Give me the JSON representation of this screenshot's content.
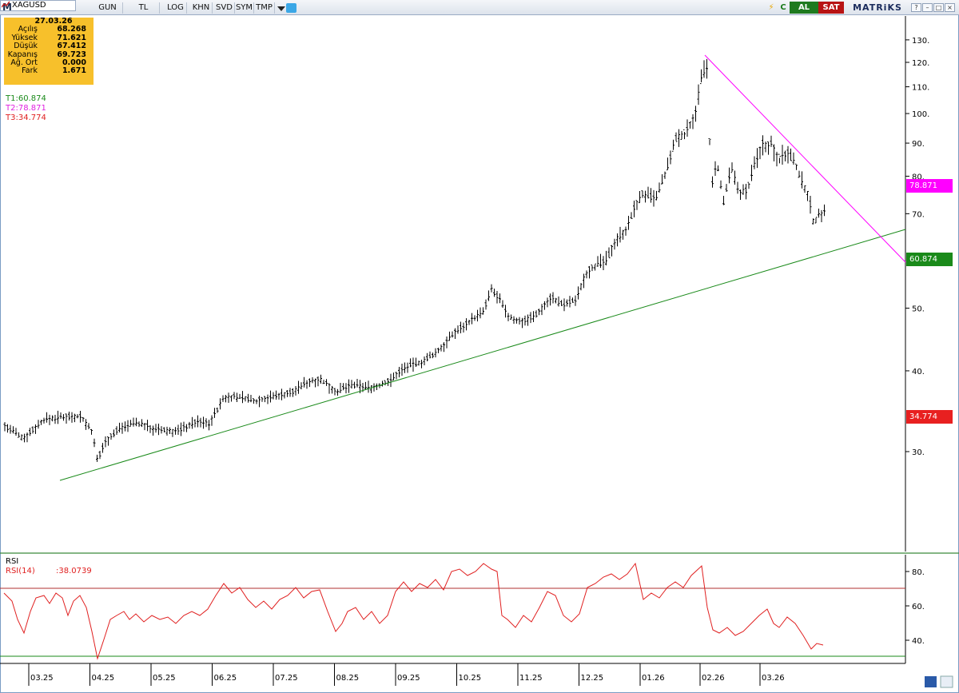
{
  "toolbar": {
    "logo": "M",
    "symbol": "XAGUSD",
    "buttons": [
      "GUN",
      "TL",
      "LOG",
      "KHN",
      "SVD",
      "SYM",
      "TMP"
    ],
    "al": "AL",
    "sat": "SAT",
    "brand": "MATRiKS",
    "c": "C",
    "lightning": "⚡",
    "win_buttons": [
      "?",
      "–",
      "□",
      "×"
    ]
  },
  "info": {
    "date": "27.03.26",
    "rows": [
      {
        "k": "Açılış",
        "v": "68.268"
      },
      {
        "k": "Yüksek",
        "v": "71.621"
      },
      {
        "k": "Düşük",
        "v": "67.412"
      },
      {
        "k": "Kapanış",
        "v": "69.723"
      },
      {
        "k": "Ağ. Ort",
        "v": "0.000"
      },
      {
        "k": "Fark",
        "v": "1.671"
      }
    ]
  },
  "trend_lines": [
    {
      "label": "T1:60.874",
      "color": "#1a8a1a"
    },
    {
      "label": "T2:78.871",
      "color": "#e020e0"
    },
    {
      "label": "T3:34.774",
      "color": "#e02020"
    }
  ],
  "tags": [
    {
      "value": "78.871",
      "color": "#ff00ff"
    },
    {
      "value": "60.874",
      "color": "#1a8a1a"
    },
    {
      "value": "34.774",
      "color": "#e82020"
    }
  ],
  "rsi": {
    "title": "RSI",
    "label": "RSI(14)",
    "value": ":38.0739",
    "ticks": [
      "80.",
      "60.",
      "40."
    ]
  },
  "chart_data": {
    "type": "ohlc",
    "symbol": "XAGUSD",
    "price_axis": {
      "scale": "log",
      "ticks": [
        "130.",
        "120.",
        "110.",
        "100.",
        "90.",
        "80.",
        "70.",
        "50.",
        "40.",
        "30."
      ]
    },
    "x_ticks": [
      "03.25",
      "04.25",
      "05.25",
      "06.25",
      "07.25",
      "08.25",
      "09.25",
      "10.25",
      "11.25",
      "12.25",
      "01.26",
      "02.26",
      "03.26"
    ],
    "last_bar": {
      "date": "27.03.26",
      "open": 68.268,
      "high": 71.621,
      "low": 67.412,
      "close": 69.723
    },
    "approx_close_path": [
      {
        "x": "03.25",
        "close": 33.5
      },
      {
        "x": "04.25",
        "close": 31.0
      },
      {
        "x": "05.25",
        "close": 32.8
      },
      {
        "x": "06.25",
        "close": 36.0
      },
      {
        "x": "07.25",
        "close": 37.5
      },
      {
        "x": "08.25",
        "close": 37.8
      },
      {
        "x": "09.25",
        "close": 42.0
      },
      {
        "x": "10.25",
        "close": 50.0
      },
      {
        "x": "11.25",
        "close": 48.5
      },
      {
        "x": "12.25",
        "close": 58.0
      },
      {
        "x": "01.26",
        "close": 85.0
      },
      {
        "x": "02.26",
        "close": 80.0
      },
      {
        "x": "03.26",
        "close": 69.7
      }
    ],
    "rsi": {
      "period": 14,
      "last": 38.0739,
      "levels": [
        70,
        30
      ],
      "axis_ticks": [
        80,
        60,
        40
      ]
    }
  }
}
